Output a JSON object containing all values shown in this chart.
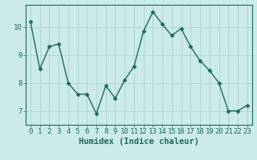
{
  "x": [
    0,
    1,
    2,
    3,
    4,
    5,
    6,
    7,
    8,
    9,
    10,
    11,
    12,
    13,
    14,
    15,
    16,
    17,
    18,
    19,
    20,
    21,
    22,
    23
  ],
  "y": [
    10.2,
    8.5,
    9.3,
    9.4,
    8.0,
    7.6,
    7.6,
    6.9,
    7.9,
    7.45,
    8.1,
    8.6,
    9.85,
    10.55,
    10.1,
    9.7,
    9.95,
    9.3,
    8.8,
    8.45,
    8.0,
    7.0,
    7.0,
    7.2
  ],
  "line_color": "#1a6b5a",
  "marker": "D",
  "marker_size": 2.5,
  "bg_color": "#cceae8",
  "grid_color": "#aad4d0",
  "xlabel": "Humidex (Indice chaleur)",
  "xlim": [
    -0.5,
    23.5
  ],
  "ylim": [
    6.5,
    10.8
  ],
  "yticks": [
    7,
    8,
    9,
    10
  ],
  "xticks": [
    0,
    1,
    2,
    3,
    4,
    5,
    6,
    7,
    8,
    9,
    10,
    11,
    12,
    13,
    14,
    15,
    16,
    17,
    18,
    19,
    20,
    21,
    22,
    23
  ],
  "tick_color": "#1a6b5a",
  "label_color": "#1a6b5a",
  "xlabel_fontsize": 7.5,
  "tick_fontsize": 6.5,
  "linewidth": 1.0
}
